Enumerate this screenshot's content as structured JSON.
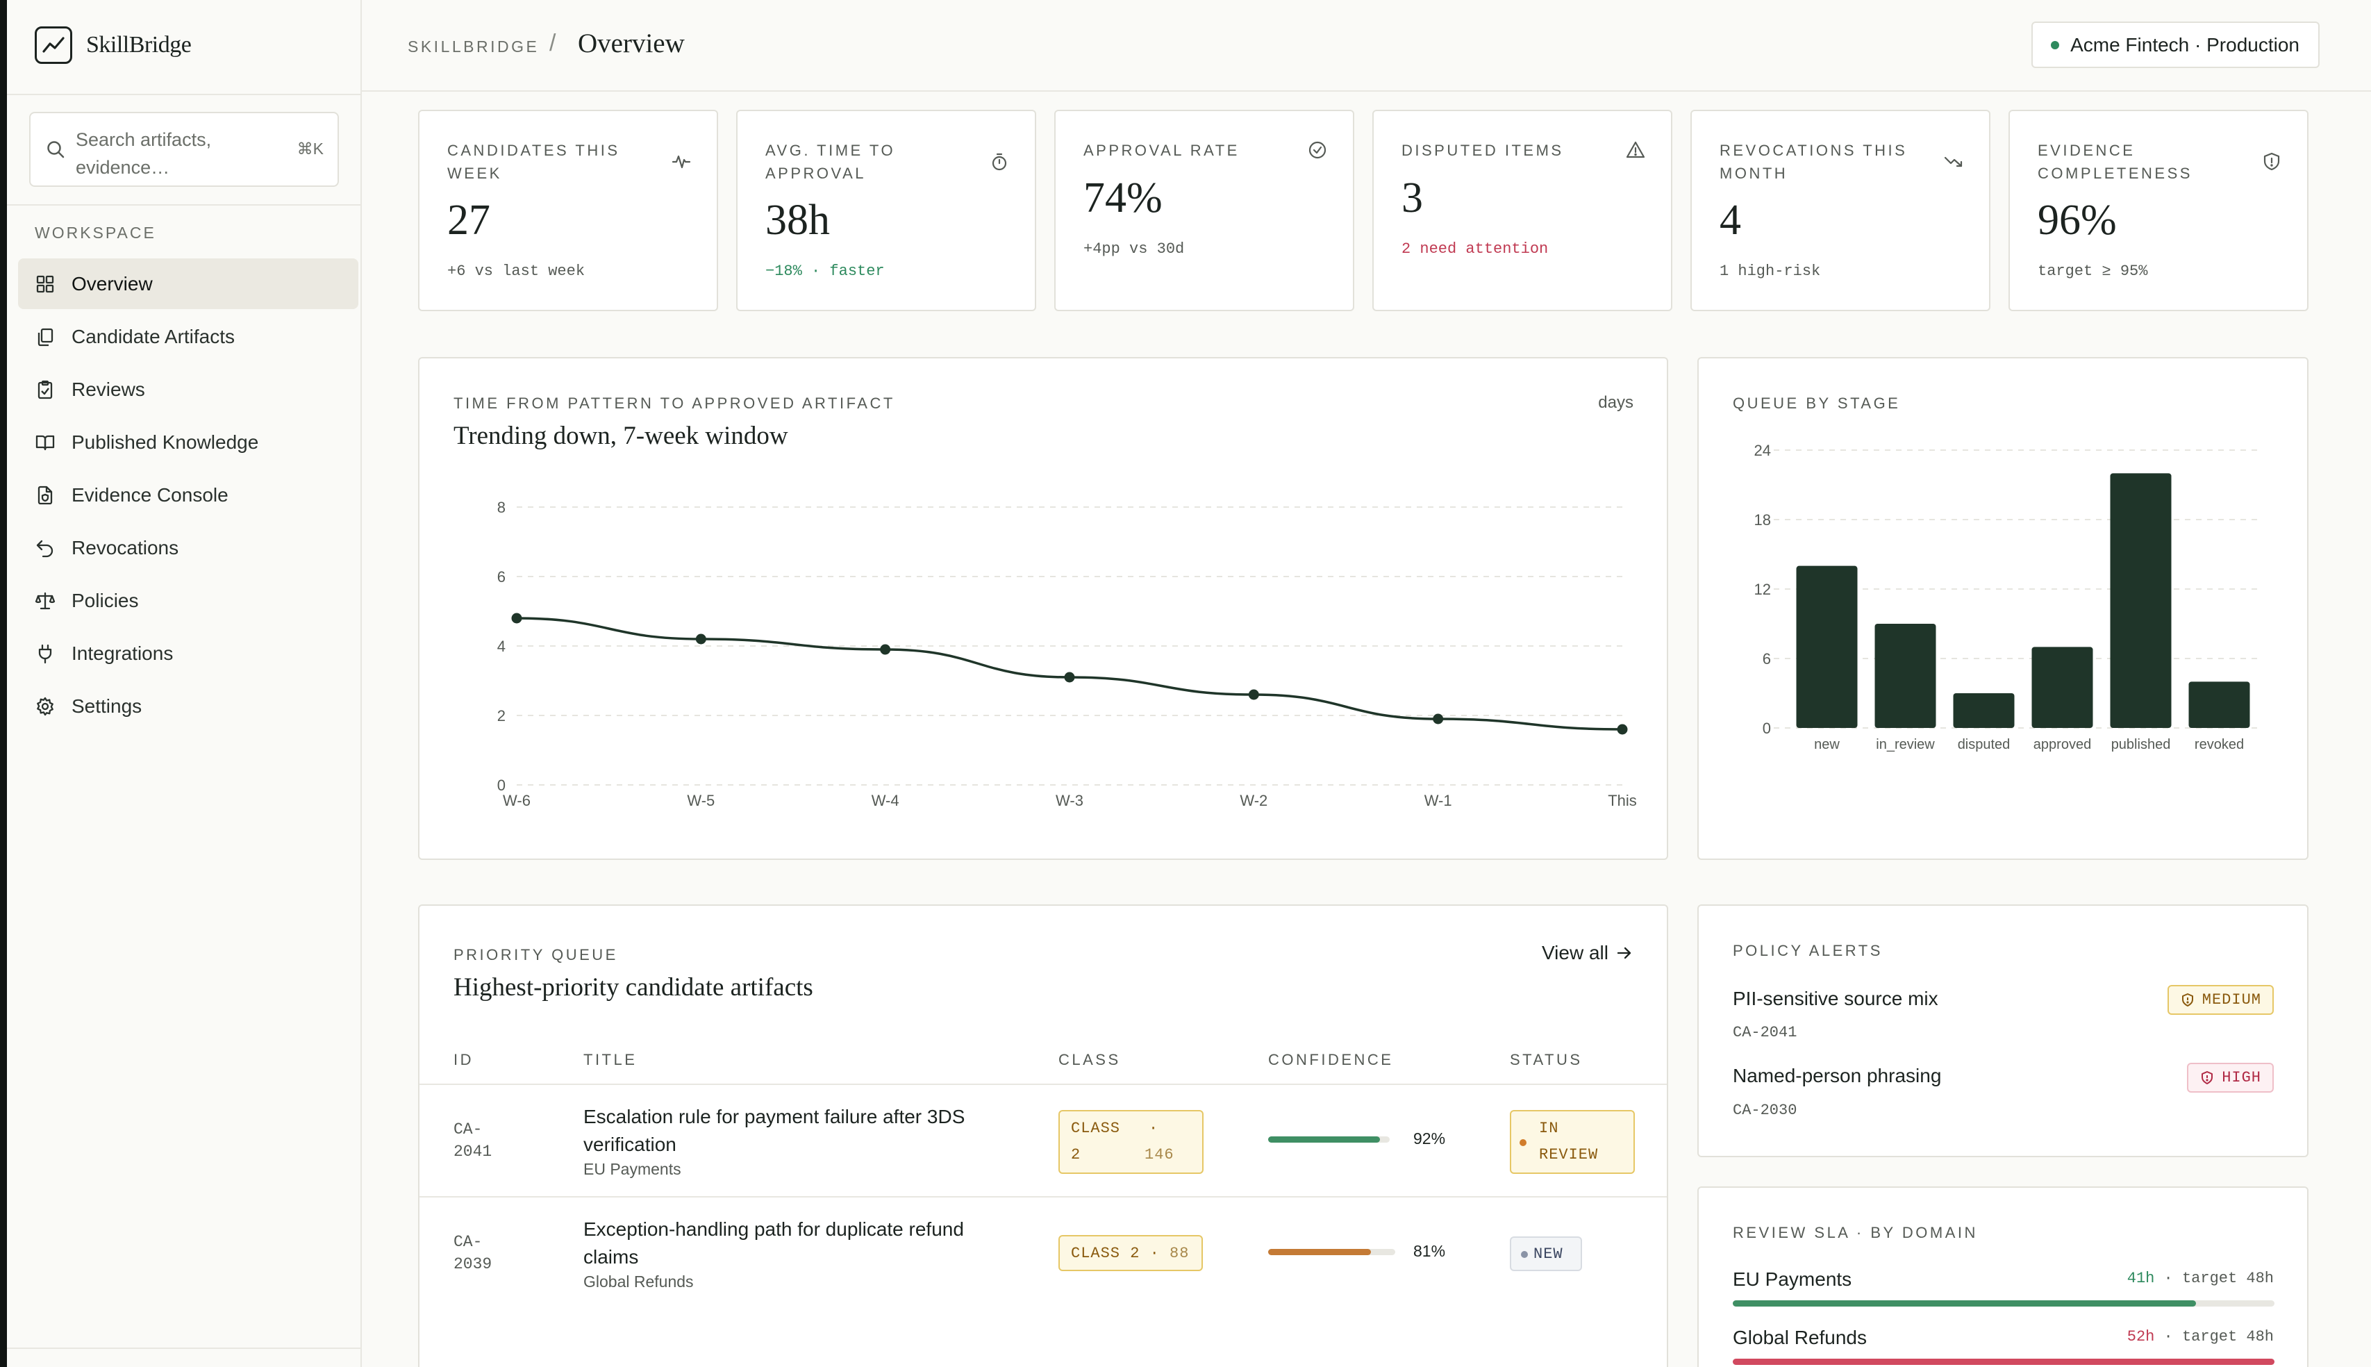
{
  "app": {
    "name": "SkillBridge"
  },
  "sidebar": {
    "search_placeholder": "Search artifacts, evidence…",
    "search_shortcut": "⌘K",
    "section_label": "WORKSPACE",
    "items": [
      {
        "label": "Overview",
        "icon": "grid-icon",
        "active": true
      },
      {
        "label": "Candidate Artifacts",
        "icon": "copy-icon"
      },
      {
        "label": "Reviews",
        "icon": "clipboard-check-icon"
      },
      {
        "label": "Published Knowledge",
        "icon": "book-icon"
      },
      {
        "label": "Evidence Console",
        "icon": "file-shield-icon"
      },
      {
        "label": "Revocations",
        "icon": "undo-icon"
      },
      {
        "label": "Policies",
        "icon": "scale-icon"
      },
      {
        "label": "Integrations",
        "icon": "plug-icon"
      },
      {
        "label": "Settings",
        "icon": "gear-icon"
      }
    ]
  },
  "header": {
    "breadcrumb_root": "SKILLBRIDGE",
    "breadcrumb_sep": "/",
    "page_title": "Overview",
    "environment": "Acme Fintech · Production"
  },
  "kpis": [
    {
      "label": "CANDIDATES THIS WEEK",
      "value": "27",
      "sub": "+6 vs last week",
      "icon": "activity-icon",
      "tone": "neutral"
    },
    {
      "label": "AVG. TIME TO APPROVAL",
      "value": "38h",
      "sub": "−18% · faster",
      "icon": "stopwatch-icon",
      "tone": "green"
    },
    {
      "label": "APPROVAL RATE",
      "value": "74%",
      "sub": "+4pp vs 30d",
      "icon": "check-circle-icon",
      "tone": "neutral"
    },
    {
      "label": "DISPUTED ITEMS",
      "value": "3",
      "sub": "2 need attention",
      "icon": "warning-icon",
      "tone": "red"
    },
    {
      "label": "REVOCATIONS THIS MONTH",
      "value": "4",
      "sub": "1 high-risk",
      "icon": "trending-down-icon",
      "tone": "neutral"
    },
    {
      "label": "EVIDENCE COMPLETENESS",
      "value": "96%",
      "sub": "target ≥ 95%",
      "icon": "shield-icon",
      "tone": "neutral"
    }
  ],
  "trend_card": {
    "eyebrow": "TIME FROM PATTERN TO APPROVED ARTIFACT",
    "title": "Trending down, 7-week window",
    "unit": "days"
  },
  "queue_card": {
    "eyebrow": "QUEUE BY STAGE"
  },
  "chart_data": [
    {
      "type": "line",
      "x": [
        "W-6",
        "W-5",
        "W-4",
        "W-3",
        "W-2",
        "W-1",
        "This"
      ],
      "series": [
        {
          "values": [
            4.8,
            4.2,
            3.9,
            3.1,
            2.6,
            1.9,
            1.6
          ]
        }
      ],
      "y_ticks": [
        0,
        2,
        4,
        6,
        8
      ],
      "ylim": [
        0,
        8
      ],
      "grid": true,
      "color": "#1f3529"
    },
    {
      "type": "bar",
      "categories": [
        "new",
        "in_review",
        "disputed",
        "approved",
        "published",
        "revoked"
      ],
      "values": [
        14,
        9,
        3,
        7,
        22,
        4
      ],
      "y_ticks": [
        0,
        6,
        12,
        18,
        24
      ],
      "ylim": [
        0,
        24
      ],
      "grid": true,
      "color": "#1f3529"
    }
  ],
  "priority_queue": {
    "eyebrow": "PRIORITY QUEUE",
    "title": "Highest-priority candidate artifacts",
    "view_all": "View all",
    "columns": [
      "ID",
      "TITLE",
      "CLASS",
      "CONFIDENCE",
      "STATUS"
    ],
    "rows": [
      {
        "id_a": "CA-",
        "id_b": "2041",
        "title_a": "Escalation rule for payment failure after 3DS",
        "title_b": "verification",
        "domain": "EU Payments",
        "class_a": "CLASS",
        "class_dot": "·",
        "class_b": "2",
        "class_count": "146",
        "confidence": 0.92,
        "confidence_label": "92%",
        "status_a": "IN",
        "status_b": "REVIEW",
        "bar_color": "#3f8f64"
      },
      {
        "id_a": "CA-",
        "id_b": "2039",
        "title_a": "Exception-handling path for duplicate refund",
        "title_b": "claims",
        "domain": "Global Refunds",
        "class_label": "CLASS 2 · ",
        "class_count": "88",
        "confidence": 0.81,
        "confidence_label": "81%",
        "status": "NEW",
        "bar_color": "#c47a35"
      }
    ]
  },
  "policy_alerts": {
    "eyebrow": "POLICY ALERTS",
    "items": [
      {
        "title": "PII-sensitive source mix",
        "id": "CA-2041",
        "severity": "MEDIUM"
      },
      {
        "title": "Named-person phrasing",
        "id": "CA-2030",
        "severity": "HIGH"
      }
    ]
  },
  "review_sla": {
    "eyebrow": "REVIEW SLA · BY DOMAIN",
    "items": [
      {
        "domain": "EU Payments",
        "actual": "41h",
        "target": " · target 48h",
        "fraction": 0.855,
        "color": "#3f8f64"
      },
      {
        "domain": "Global Refunds",
        "actual": "52h",
        "target": " · target 48h",
        "fraction": 1.0,
        "color": "#d1495f"
      }
    ]
  }
}
